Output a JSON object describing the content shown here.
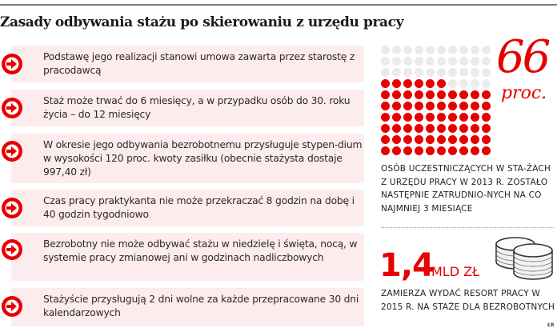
{
  "header": {
    "title": "Zasady odbywania stażu po skierowaniu z urzędu pracy"
  },
  "rules": [
    {
      "icon": "arrow-right-icon",
      "text": "Podstawę jego realizacji stanowi umowa zawarta przez starostę z pracodawcą"
    },
    {
      "icon": "arrow-right-icon",
      "text": "Staż może trwać do 6 miesięcy, a w przypadku osób do 30. roku życia – do 12 miesięcy"
    },
    {
      "icon": "arrow-right-icon",
      "text": "W okresie jego odbywania bezrobotnemu przysługuje stypen-dium w wysokości 120 proc. kwoty zasiłku (obecnie stażysta dostaje 997,40 zł)"
    },
    {
      "icon": "arrow-right-icon",
      "text": "Czas pracy praktykanta nie może przekraczać 8 godzin na dobę i 40 godzin tygodniowo"
    },
    {
      "icon": "arrow-right-icon",
      "text": "Bezrobotny nie może odbywać stażu w niedzielę i święta, nocą, w systemie pracy zmianowej ani w godzinach nadliczbowych"
    },
    {
      "icon": "arrow-right-icon",
      "text": "Stażyście przysługują 2 dni wolne za każde przepracowane 30 dni kalendarzowych"
    }
  ],
  "stat_employment": {
    "value": "66",
    "unit": "proc.",
    "dots_total": 100,
    "dots_highlighted": 66,
    "grid_columns": 10,
    "grid_rows": 10,
    "caption": "Osób uczestniczących w sta-żach z urzędu pracy w 2013 r. zostało następnie zatrudnio-nych na co najmniej 3 miesiące"
  },
  "stat_budget": {
    "value": "1,4",
    "unit": "MLD ZŁ",
    "icon": "coins-stack-icon",
    "caption": "Zamierza wydać resort pracy w 2015 r. na staże dla bezrobotnych"
  },
  "credit": "ŁR",
  "colors": {
    "accent_red": "#e60000",
    "box_pink": "#fdeced",
    "dot_gray": "#ebebeb",
    "text_dark": "#222222"
  }
}
